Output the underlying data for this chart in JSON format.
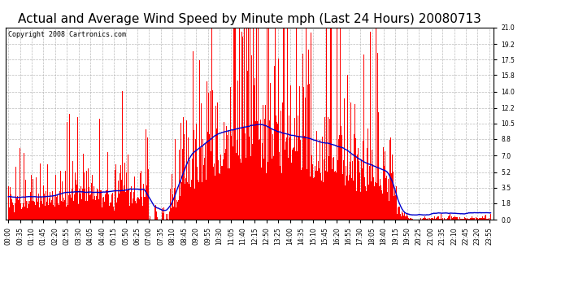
{
  "title": "Actual and Average Wind Speed by Minute mph (Last 24 Hours) 20080713",
  "copyright": "Copyright 2008 Cartronics.com",
  "yticks": [
    0.0,
    1.8,
    3.5,
    5.2,
    7.0,
    8.8,
    10.5,
    12.2,
    14.0,
    15.8,
    17.5,
    19.2,
    21.0
  ],
  "ylim": [
    0,
    21.0
  ],
  "bar_color": "#ff0000",
  "line_color": "#0000cc",
  "bg_color": "#ffffff",
  "grid_color": "#aaaaaa",
  "title_fontsize": 11,
  "copyright_fontsize": 6,
  "tick_fontsize": 5.5,
  "seed": 42
}
